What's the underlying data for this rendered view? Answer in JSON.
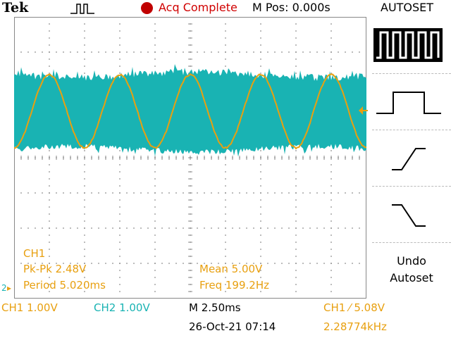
{
  "header": {
    "brand": "Tek",
    "acq_status": "Acq Complete",
    "m_pos": "M Pos: 0.000s",
    "menu_title": "AUTOSET"
  },
  "measurements": {
    "channel": "CH1",
    "pk_pk": "Pk-Pk 2.48V",
    "period": "Period 5.020ms",
    "mean": "Mean 5.00V",
    "freq": "Freq 199.2Hz"
  },
  "status_bar": {
    "ch1_scale": "CH1  1.00V",
    "ch2_scale": "CH2  1.00V",
    "timebase": "M 2.50ms",
    "datetime": "26-Oct-21 07:14",
    "trigger": "CH1 ⁄ 5.08V",
    "trigger_freq": "2.28774kHz"
  },
  "side_menu": {
    "options": [
      "square-wave-multi-icon",
      "single-pulse-icon",
      "rising-edge-icon",
      "falling-edge-icon"
    ],
    "undo_line1": "Undo",
    "undo_line2": "Autoset"
  },
  "channel_marker": "2",
  "colors": {
    "ch1": "#e8a010",
    "ch2": "#19b3b3",
    "status_red": "#d00000"
  }
}
